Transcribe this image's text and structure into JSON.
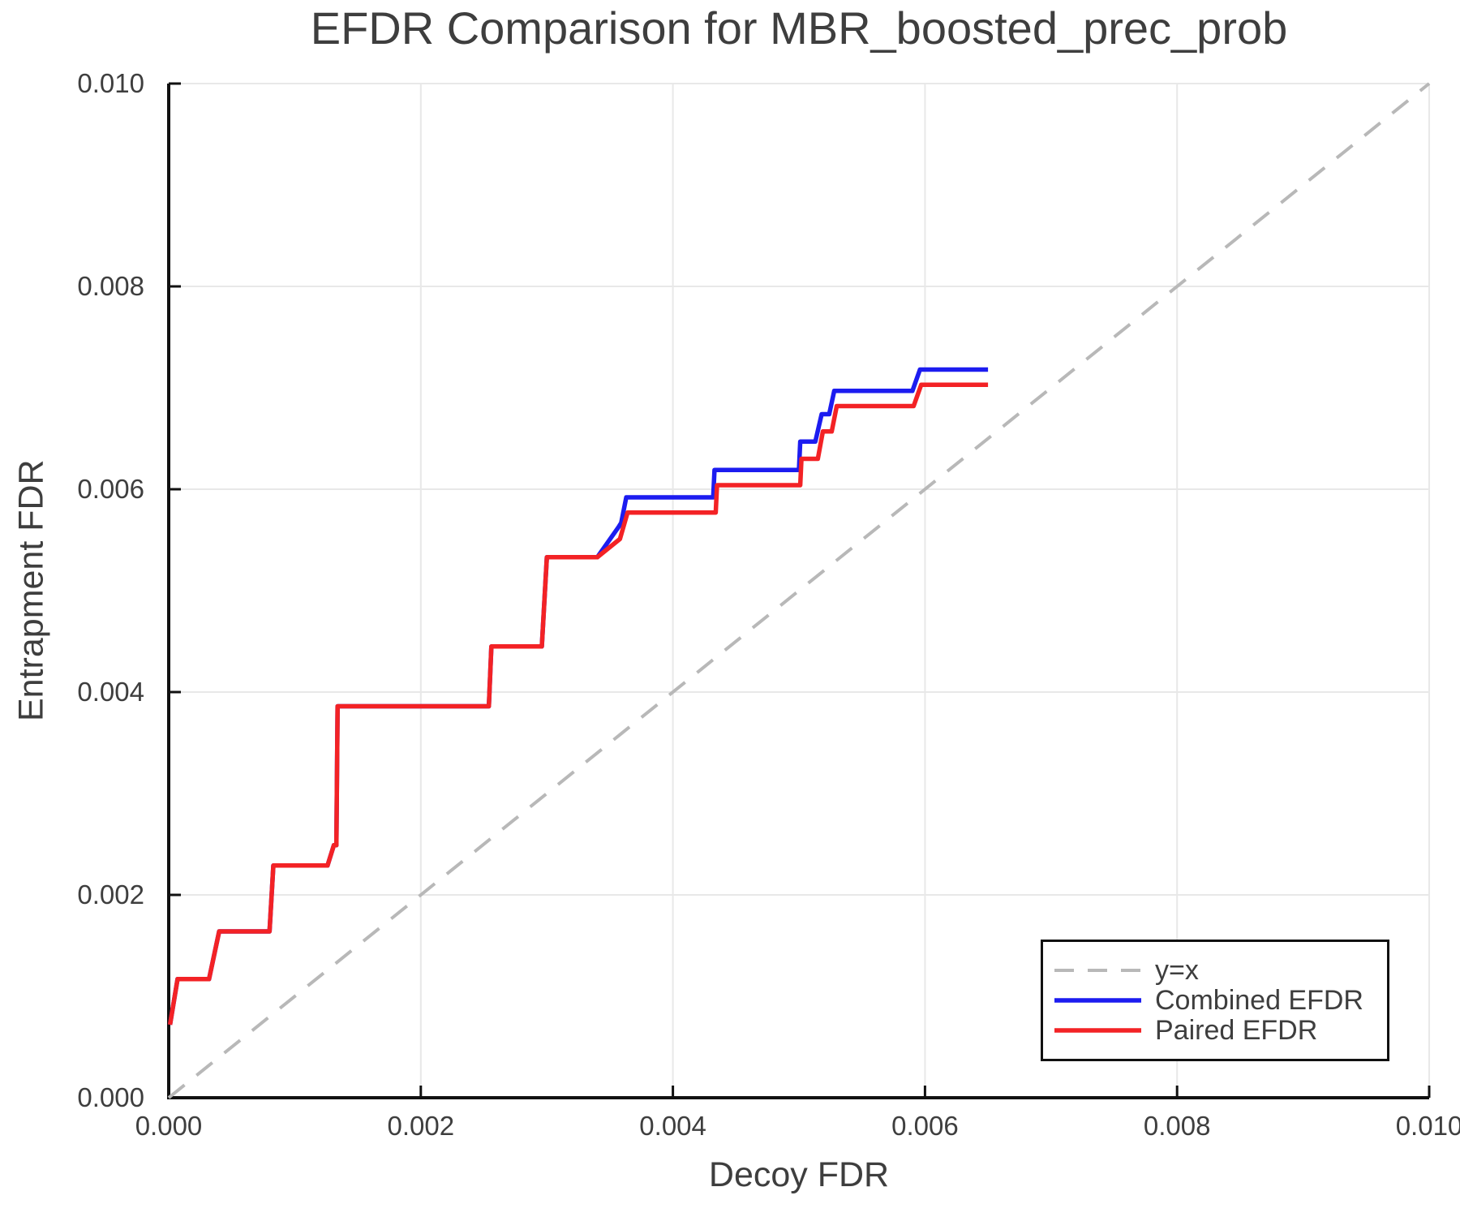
{
  "figure": {
    "title": "EFDR Comparison for MBR_boosted_prec_prob",
    "xlabel": "Decoy FDR",
    "ylabel": "Entrapment FDR"
  },
  "chart_data": {
    "type": "line",
    "title": "EFDR Comparison for MBR_boosted_prec_prob",
    "xlabel": "Decoy FDR",
    "ylabel": "Entrapment FDR",
    "xlim": [
      0.0,
      0.01
    ],
    "ylim": [
      0.0,
      0.01
    ],
    "xticks": [
      0.0,
      0.002,
      0.004,
      0.006,
      0.008,
      0.01
    ],
    "xticklabels": [
      "0.000",
      "0.002",
      "0.004",
      "0.006",
      "0.008",
      "0.010"
    ],
    "yticks": [
      0.0,
      0.002,
      0.004,
      0.006,
      0.008,
      0.01
    ],
    "yticklabels": [
      "0.000",
      "0.002",
      "0.004",
      "0.006",
      "0.008",
      "0.010"
    ],
    "grid": true,
    "legend_position": "lower right",
    "colors": {
      "grid": "#e8e8e8",
      "spine": "#111111",
      "text": "#3e3e3e",
      "reference": "#b8b8b8",
      "combined": "#1c1cf0",
      "paired": "#f32225"
    },
    "series": [
      {
        "name": "y=x",
        "style": "dashed",
        "color": "#b8b8b8",
        "width": 4,
        "points": [
          [
            0.0,
            0.0
          ],
          [
            0.01,
            0.01
          ]
        ]
      },
      {
        "name": "Combined EFDR",
        "style": "solid",
        "color": "#1c1cf0",
        "width": 5.5,
        "points": [
          [
            1e-05,
            0.00072
          ],
          [
            7e-05,
            0.00117
          ],
          [
            0.00032,
            0.00117
          ],
          [
            0.0004,
            0.00164
          ],
          [
            0.0008,
            0.00164
          ],
          [
            0.00083,
            0.00229
          ],
          [
            0.00126,
            0.00229
          ],
          [
            0.00131,
            0.00249
          ],
          [
            0.00133,
            0.00249
          ],
          [
            0.00134,
            0.00386
          ],
          [
            0.00254,
            0.00386
          ],
          [
            0.00256,
            0.00445
          ],
          [
            0.00296,
            0.00445
          ],
          [
            0.003,
            0.00533
          ],
          [
            0.0034,
            0.00533
          ],
          [
            0.00357,
            0.00563
          ],
          [
            0.00359,
            0.00567
          ],
          [
            0.00363,
            0.00592
          ],
          [
            0.00432,
            0.00592
          ],
          [
            0.00433,
            0.00619
          ],
          [
            0.005,
            0.00619
          ],
          [
            0.00501,
            0.00647
          ],
          [
            0.00513,
            0.00647
          ],
          [
            0.00518,
            0.00674
          ],
          [
            0.00524,
            0.00674
          ],
          [
            0.00528,
            0.00697
          ],
          [
            0.0059,
            0.00697
          ],
          [
            0.00596,
            0.00718
          ],
          [
            0.0065,
            0.00718
          ]
        ]
      },
      {
        "name": "Paired EFDR",
        "style": "solid",
        "color": "#f32225",
        "width": 5.5,
        "points": [
          [
            1e-05,
            0.00072
          ],
          [
            7e-05,
            0.00117
          ],
          [
            0.00032,
            0.00117
          ],
          [
            0.0004,
            0.00164
          ],
          [
            0.0008,
            0.00164
          ],
          [
            0.00083,
            0.00229
          ],
          [
            0.00126,
            0.00229
          ],
          [
            0.00131,
            0.00249
          ],
          [
            0.00133,
            0.00249
          ],
          [
            0.00134,
            0.00386
          ],
          [
            0.00254,
            0.00386
          ],
          [
            0.00256,
            0.00445
          ],
          [
            0.00296,
            0.00445
          ],
          [
            0.003,
            0.00533
          ],
          [
            0.0034,
            0.00533
          ],
          [
            0.00356,
            0.00549
          ],
          [
            0.00358,
            0.00551
          ],
          [
            0.00364,
            0.00577
          ],
          [
            0.00434,
            0.00577
          ],
          [
            0.00435,
            0.00604
          ],
          [
            0.00501,
            0.00604
          ],
          [
            0.00502,
            0.0063
          ],
          [
            0.00515,
            0.0063
          ],
          [
            0.00519,
            0.00657
          ],
          [
            0.00526,
            0.00657
          ],
          [
            0.0053,
            0.00682
          ],
          [
            0.00591,
            0.00682
          ],
          [
            0.00597,
            0.00703
          ],
          [
            0.0065,
            0.00703
          ]
        ]
      }
    ]
  }
}
